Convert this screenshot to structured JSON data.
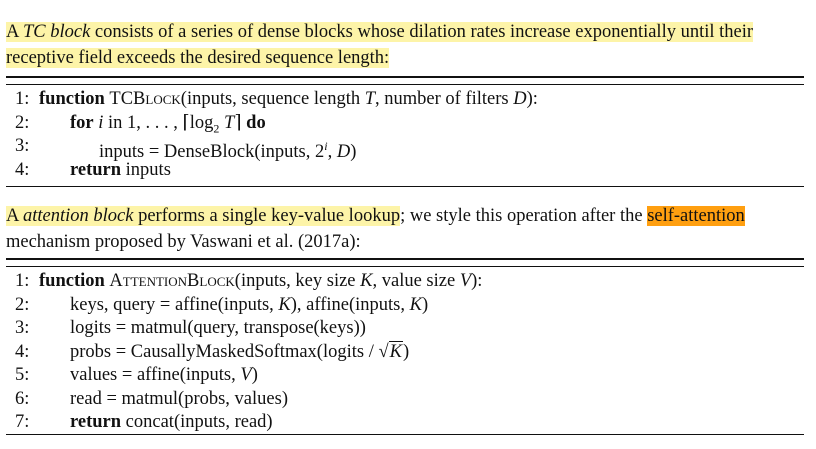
{
  "intro": {
    "p1": {
      "a": "A ",
      "b": "TC block",
      "c": " consists of a series of dense blocks whose dilation rates increase exponentially until their receptive field exceeds the desired sequence length:"
    },
    "p2": {
      "a": "A ",
      "b": "attention block",
      "c": " performs a single key-value lookup",
      "d": "; we style this operation after the ",
      "e": "self-attention",
      "f": " mechanism proposed by Vaswani et al. (2017a):"
    }
  },
  "algo1": {
    "lines": [
      {
        "num": "1:",
        "kw": "function",
        "pre": " ",
        "name": "TCBlock",
        "args": "(inputs, sequence length ",
        "v1": "T",
        "mid": ", number of filters ",
        "v2": "D",
        "end": "):"
      },
      {
        "num": "2:",
        "kw": "for",
        "text_i": "i",
        "text_in": " in ",
        "range": "1, . . . , ⌈log",
        "sub": "2",
        "rangeT": " T",
        "rangeEnd": "⌉",
        "kw2": "do"
      },
      {
        "num": "3:",
        "text": "inputs = DenseBlock(inputs, 2",
        "sup": "i",
        "after": ", ",
        "v": "D",
        "end": ")"
      },
      {
        "num": "4:",
        "kw": "return",
        "text": " inputs"
      }
    ]
  },
  "algo2": {
    "lines": [
      {
        "num": "1:",
        "kw": "function",
        "name": "AttentionBlock",
        "args": "(inputs, key size ",
        "v1": "K",
        "mid": ", value size ",
        "v2": "V",
        "end": "):"
      },
      {
        "num": "2:",
        "text": "keys, query = affine(inputs, ",
        "v": "K",
        "mid": "), affine(inputs, ",
        "v2": "K",
        "end": ")"
      },
      {
        "num": "3:",
        "text": "logits = matmul(query, transpose(keys))"
      },
      {
        "num": "4:",
        "text": "probs = CausallyMaskedSoftmax(logits / ",
        "rad": "√",
        "v": "K",
        "end": ")"
      },
      {
        "num": "5:",
        "text": "values = affine(inputs, ",
        "v": "V",
        "end": ")"
      },
      {
        "num": "6:",
        "text": "read = matmul(probs, values)"
      },
      {
        "num": "7:",
        "kw": "return",
        "text": " concat(inputs, read)"
      }
    ]
  }
}
